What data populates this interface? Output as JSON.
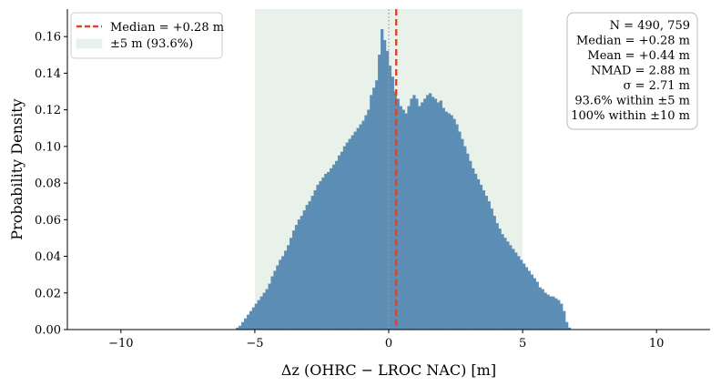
{
  "chart_data": {
    "type": "bar",
    "xlabel": "Δz (OHRC − LROC NAC) [m]",
    "ylabel": "Probability Density",
    "xlim": [
      -12,
      12
    ],
    "ylim": [
      0,
      0.175
    ],
    "x_ticks": [
      -10,
      -5,
      0,
      5,
      10
    ],
    "x_tick_labels": [
      "−10",
      "−5",
      "0",
      "5",
      "10"
    ],
    "y_ticks": [
      0.0,
      0.02,
      0.04,
      0.06,
      0.08,
      0.1,
      0.12,
      0.14,
      0.16
    ],
    "y_tick_labels": [
      "0.00",
      "0.02",
      "0.04",
      "0.06",
      "0.08",
      "0.10",
      "0.12",
      "0.14",
      "0.16"
    ],
    "bin_width": 0.1,
    "series": [
      {
        "name": "histogram",
        "bin_start": -6.5,
        "values": [
          0,
          0,
          0,
          0,
          0,
          0,
          0,
          0,
          0.001,
          0.002,
          0.004,
          0.006,
          0.008,
          0.01,
          0.012,
          0.014,
          0.016,
          0.018,
          0.02,
          0.022,
          0.025,
          0.029,
          0.032,
          0.035,
          0.038,
          0.04,
          0.043,
          0.046,
          0.05,
          0.054,
          0.057,
          0.06,
          0.062,
          0.065,
          0.068,
          0.07,
          0.073,
          0.076,
          0.079,
          0.081,
          0.083,
          0.085,
          0.086,
          0.088,
          0.09,
          0.092,
          0.095,
          0.097,
          0.1,
          0.102,
          0.104,
          0.106,
          0.108,
          0.11,
          0.112,
          0.114,
          0.117,
          0.12,
          0.128,
          0.132,
          0.136,
          0.15,
          0.164,
          0.158,
          0.152,
          0.144,
          0.138,
          0.13,
          0.126,
          0.122,
          0.12,
          0.118,
          0.122,
          0.126,
          0.128,
          0.126,
          0.122,
          0.124,
          0.126,
          0.128,
          0.129,
          0.127,
          0.126,
          0.124,
          0.125,
          0.121,
          0.119,
          0.118,
          0.117,
          0.115,
          0.112,
          0.108,
          0.104,
          0.1,
          0.096,
          0.092,
          0.088,
          0.085,
          0.082,
          0.079,
          0.076,
          0.073,
          0.07,
          0.066,
          0.062,
          0.058,
          0.055,
          0.052,
          0.05,
          0.048,
          0.046,
          0.044,
          0.042,
          0.04,
          0.038,
          0.036,
          0.034,
          0.032,
          0.03,
          0.028,
          0.026,
          0.023,
          0.022,
          0.02,
          0.019,
          0.018,
          0.018,
          0.017,
          0.016,
          0.014,
          0.01,
          0.004,
          0.001,
          0,
          0,
          0,
          0,
          0,
          0,
          0
        ]
      }
    ],
    "shaded_region": {
      "x0": -5,
      "x1": 5,
      "color": "#e9f2ea"
    },
    "median_line": {
      "x": 0.28,
      "color": "#d9462b"
    },
    "zero_line": {
      "x": 0,
      "color": "#9a9a9a"
    },
    "bar_color": "#5b8db5",
    "legend": {
      "position": "top-left",
      "entries": [
        {
          "label": "Median = +0.28 m",
          "kind": "dashed-line",
          "color": "#d9462b"
        },
        {
          "label": "±5 m (93.6%)",
          "kind": "patch",
          "color": "#e9f2ea"
        }
      ]
    },
    "stats_box": {
      "position": "top-right",
      "lines": [
        "N = 490, 759",
        "Median = +0.28 m",
        "Mean = +0.44 m",
        "NMAD = 2.88 m",
        "σ = 2.71 m",
        "93.6% within ±5 m",
        "100% within ±10 m"
      ]
    }
  }
}
